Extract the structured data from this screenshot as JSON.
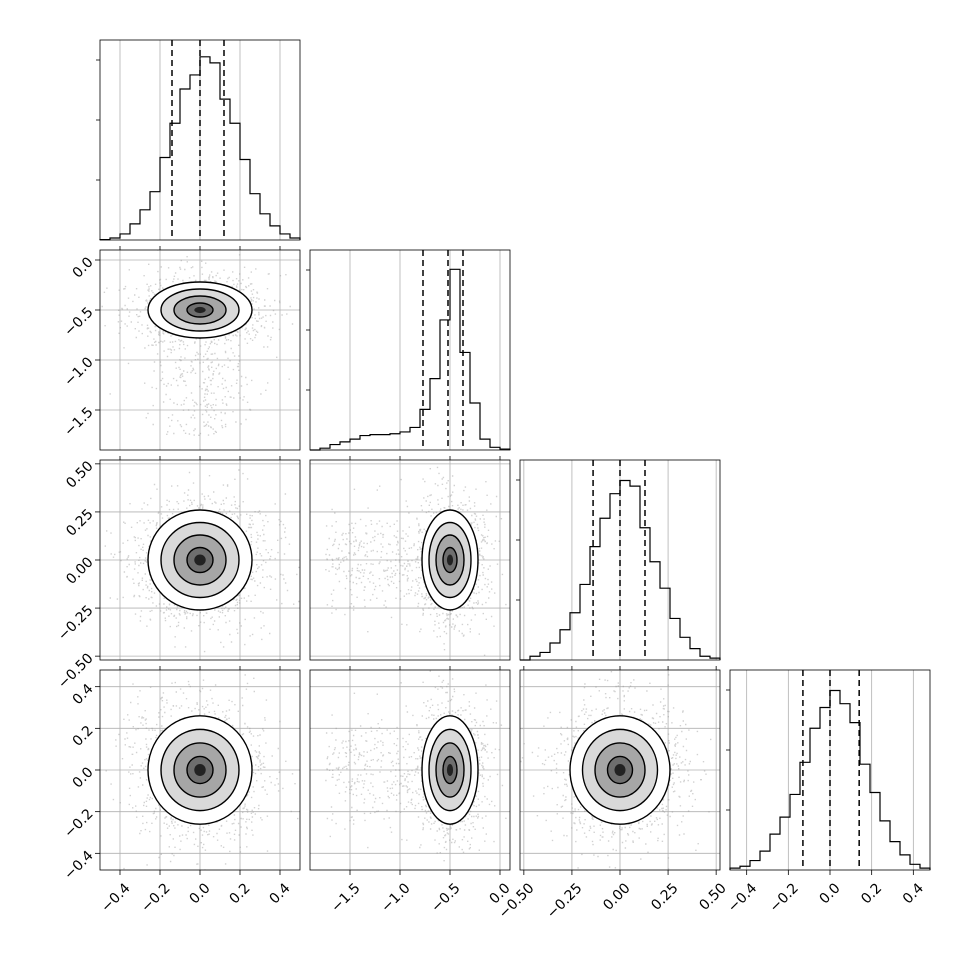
{
  "chart_data": {
    "type": "corner",
    "n_params": 4,
    "quantile_lines": "dashed",
    "grid": true,
    "colors": {
      "line": "#000000",
      "grid": "#b0b0b0",
      "points": "#9a9a9a",
      "density_dark": "#000000",
      "density_light": "#ffffff"
    },
    "params": [
      {
        "range": [
          -0.5,
          0.5
        ],
        "ticks": [
          -0.4,
          -0.2,
          0.0,
          0.2,
          0.4
        ],
        "tick_labels": [
          "−0.4",
          "−0.2",
          "0.0",
          "0.2",
          "0.4"
        ],
        "quantiles": [
          -0.14,
          0.0,
          0.12
        ],
        "sd": 0.13,
        "hist_ymax": 0.092,
        "hist_bins": [
          -0.5,
          -0.45,
          -0.4,
          -0.35,
          -0.3,
          -0.25,
          -0.2,
          -0.15,
          -0.1,
          -0.05,
          0.0,
          0.05,
          0.1,
          0.15,
          0.2,
          0.25,
          0.3,
          0.35,
          0.4,
          0.45,
          0.5
        ],
        "hist_counts": [
          0.0002,
          0.001,
          0.003,
          0.008,
          0.015,
          0.024,
          0.041,
          0.058,
          0.075,
          0.082,
          0.091,
          0.088,
          0.07,
          0.058,
          0.04,
          0.023,
          0.013,
          0.007,
          0.003,
          0.001
        ]
      },
      {
        "range": [
          -1.9,
          0.1
        ],
        "ticks": [
          0.0,
          -0.5,
          -1.0,
          -1.5
        ],
        "tick_labels": [
          "0.0",
          "−0.5",
          "−1.0",
          "−1.5"
        ],
        "bottom_ticks": [
          -1.5,
          -1.0,
          -0.5,
          0.0
        ],
        "bottom_labels": [
          "−1.5",
          "−1.0",
          "−0.5",
          "0.0"
        ],
        "quantiles": [
          -0.77,
          -0.52,
          -0.37
        ],
        "sd": 0.14,
        "hist_ymax": 0.205,
        "hist_bins": [
          -1.9,
          -1.8,
          -1.7,
          -1.6,
          -1.5,
          -1.4,
          -1.3,
          -1.2,
          -1.1,
          -1.0,
          -0.9,
          -0.8,
          -0.7,
          -0.6,
          -0.5,
          -0.4,
          -0.3,
          -0.2,
          -0.1,
          0.0,
          0.1
        ],
        "hist_counts": [
          0.0,
          0.002,
          0.006,
          0.009,
          0.012,
          0.016,
          0.017,
          0.017,
          0.018,
          0.02,
          0.025,
          0.045,
          0.079,
          0.144,
          0.2,
          0.108,
          0.052,
          0.012,
          0.003,
          0.001
        ]
      },
      {
        "range": [
          -0.52,
          0.52
        ],
        "ticks": [
          0.5,
          0.25,
          0.0,
          -0.25,
          -0.5
        ],
        "tick_labels": [
          "0.50",
          "0.25",
          "0.00",
          "−0.25",
          "−0.50"
        ],
        "bottom_ticks": [
          -0.5,
          -0.25,
          0.0,
          0.25,
          0.5
        ],
        "bottom_labels": [
          "−0.50",
          "−0.25",
          "0.00",
          "0.25",
          "0.50"
        ],
        "quantiles": [
          -0.14,
          0.0,
          0.13
        ],
        "sd": 0.13,
        "hist_ymax": 0.098,
        "hist_bins": [
          -0.52,
          -0.468,
          -0.416,
          -0.364,
          -0.312,
          -0.26,
          -0.208,
          -0.156,
          -0.104,
          -0.052,
          0.0,
          0.052,
          0.104,
          0.156,
          0.208,
          0.26,
          0.312,
          0.364,
          0.416,
          0.468,
          0.52
        ],
        "hist_counts": [
          0.0,
          0.002,
          0.004,
          0.009,
          0.016,
          0.025,
          0.04,
          0.06,
          0.075,
          0.088,
          0.095,
          0.092,
          0.07,
          0.052,
          0.038,
          0.022,
          0.012,
          0.006,
          0.002,
          0.001
        ]
      },
      {
        "range": [
          -0.48,
          0.48
        ],
        "ticks": [
          0.4,
          0.2,
          0.0,
          -0.2,
          -0.4
        ],
        "tick_labels": [
          "0.4",
          "0.2",
          "0.0",
          "−0.2",
          "−0.4"
        ],
        "quantiles": [
          -0.13,
          0.0,
          0.14
        ],
        "sd": 0.13,
        "hist_ymax": 0.098,
        "hist_bins": [
          -0.48,
          -0.432,
          -0.384,
          -0.336,
          -0.288,
          -0.24,
          -0.192,
          -0.144,
          -0.096,
          -0.048,
          0.0,
          0.048,
          0.096,
          0.144,
          0.192,
          0.24,
          0.288,
          0.336,
          0.384,
          0.432,
          0.48
        ],
        "hist_counts": [
          0.001,
          0.002,
          0.005,
          0.01,
          0.019,
          0.028,
          0.04,
          0.057,
          0.075,
          0.086,
          0.095,
          0.088,
          0.078,
          0.056,
          0.041,
          0.026,
          0.015,
          0.008,
          0.003,
          0.001
        ]
      }
    ],
    "panels_2d": [
      {
        "x": 0,
        "y": 1,
        "mean": [
          0.0,
          -0.5
        ],
        "sd": [
          0.13,
          0.14
        ],
        "tail": {
          "x_mean": 0.0,
          "y_range": [
            -1.75,
            -0.9
          ],
          "fraction": 0.17,
          "x_sd": 0.13
        }
      },
      {
        "x": 0,
        "y": 2,
        "mean": [
          0.0,
          0.0
        ],
        "sd": [
          0.13,
          0.13
        ]
      },
      {
        "x": 1,
        "y": 2,
        "mean": [
          -0.5,
          0.0
        ],
        "sd": [
          0.14,
          0.13
        ],
        "tail": {
          "x_range": [
            -1.75,
            -0.9
          ],
          "y_mean": 0.0,
          "fraction": 0.17,
          "y_sd": 0.13
        }
      },
      {
        "x": 0,
        "y": 3,
        "mean": [
          0.0,
          0.0
        ],
        "sd": [
          0.13,
          0.13
        ]
      },
      {
        "x": 1,
        "y": 3,
        "mean": [
          -0.5,
          0.0
        ],
        "sd": [
          0.14,
          0.13
        ],
        "tail": {
          "x_range": [
            -1.75,
            -0.9
          ],
          "y_mean": 0.0,
          "fraction": 0.17,
          "y_sd": 0.13
        }
      },
      {
        "x": 2,
        "y": 3,
        "mean": [
          0.0,
          0.0
        ],
        "sd": [
          0.13,
          0.13
        ]
      }
    ],
    "contour_levels_sigma": [
      0.5,
      1.0,
      1.5,
      2.0
    ]
  }
}
